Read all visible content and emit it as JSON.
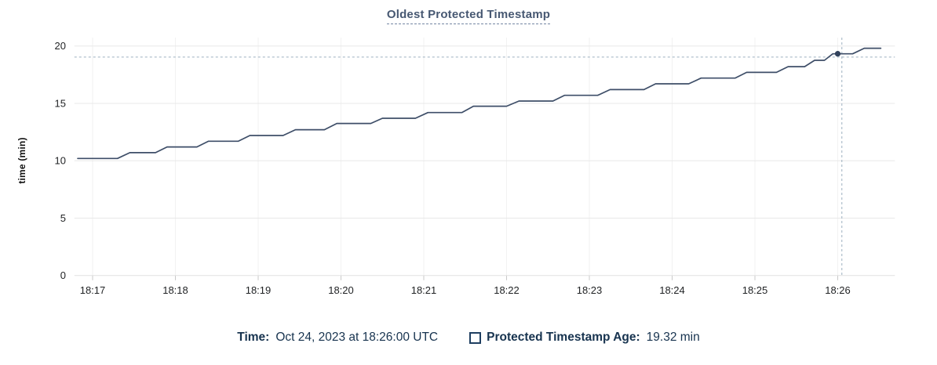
{
  "title": "Oldest Protected Timestamp",
  "tooltip": {
    "time_label": "Time:",
    "time_value": "Oct 24, 2023 at 18:26:00 UTC",
    "series_label": "Protected Timestamp Age:",
    "series_value": "19.32 min"
  },
  "style": {
    "line_color": "#3e4e68",
    "dot_color": "#32425c",
    "grid_h": "#e8e8e8",
    "grid_v": "#f2f2f2",
    "baseline": "#e0e0e0",
    "tick": "#c9c9c9",
    "crosshair": "#9db0c0",
    "axis_text": "#1f2123",
    "title_color": "#475872",
    "legend_text": "#17334f"
  },
  "chart_data": {
    "type": "line",
    "title": "Oldest Protected Timestamp",
    "xlabel": "",
    "ylabel": "time (min)",
    "legend_position": "bottom",
    "grid": true,
    "x_tick_labels": [
      "18:17",
      "18:18",
      "18:19",
      "18:20",
      "18:21",
      "18:22",
      "18:23",
      "18:24",
      "18:25",
      "18:26"
    ],
    "x_tick_minutes": [
      17,
      18,
      19,
      20,
      21,
      22,
      23,
      24,
      25,
      26
    ],
    "y_ticks": [
      0,
      5,
      10,
      15,
      20
    ],
    "ylim": [
      0,
      20
    ],
    "xlim_minutes": [
      16.78,
      26.69
    ],
    "series": [
      {
        "name": "Protected Timestamp Age",
        "unit": "min",
        "points_minutes_value": [
          [
            16.82,
            10.2
          ],
          [
            17.3,
            10.2
          ],
          [
            17.45,
            10.7
          ],
          [
            17.76,
            10.7
          ],
          [
            17.9,
            11.2
          ],
          [
            18.26,
            11.2
          ],
          [
            18.4,
            11.7
          ],
          [
            18.76,
            11.7
          ],
          [
            18.9,
            12.2
          ],
          [
            19.3,
            12.2
          ],
          [
            19.45,
            12.7
          ],
          [
            19.8,
            12.7
          ],
          [
            19.95,
            13.25
          ],
          [
            20.36,
            13.25
          ],
          [
            20.5,
            13.7
          ],
          [
            20.9,
            13.7
          ],
          [
            21.05,
            14.2
          ],
          [
            21.46,
            14.2
          ],
          [
            21.6,
            14.75
          ],
          [
            22.0,
            14.75
          ],
          [
            22.15,
            15.2
          ],
          [
            22.56,
            15.2
          ],
          [
            22.7,
            15.7
          ],
          [
            23.1,
            15.7
          ],
          [
            23.25,
            16.2
          ],
          [
            23.66,
            16.2
          ],
          [
            23.8,
            16.7
          ],
          [
            24.2,
            16.7
          ],
          [
            24.35,
            17.2
          ],
          [
            24.76,
            17.2
          ],
          [
            24.9,
            17.7
          ],
          [
            25.26,
            17.7
          ],
          [
            25.4,
            18.2
          ],
          [
            25.6,
            18.2
          ],
          [
            25.72,
            18.75
          ],
          [
            25.84,
            18.75
          ],
          [
            25.94,
            19.32
          ],
          [
            26.18,
            19.32
          ],
          [
            26.32,
            19.8
          ],
          [
            26.52,
            19.8
          ]
        ]
      }
    ],
    "highlight_point": {
      "x_minutes": 26.0,
      "y_value": 19.32,
      "time": "18:26:00",
      "value_label": "19.32 min"
    },
    "crosshair": {
      "x_minutes": 26.05,
      "y_value": 19.03
    }
  }
}
